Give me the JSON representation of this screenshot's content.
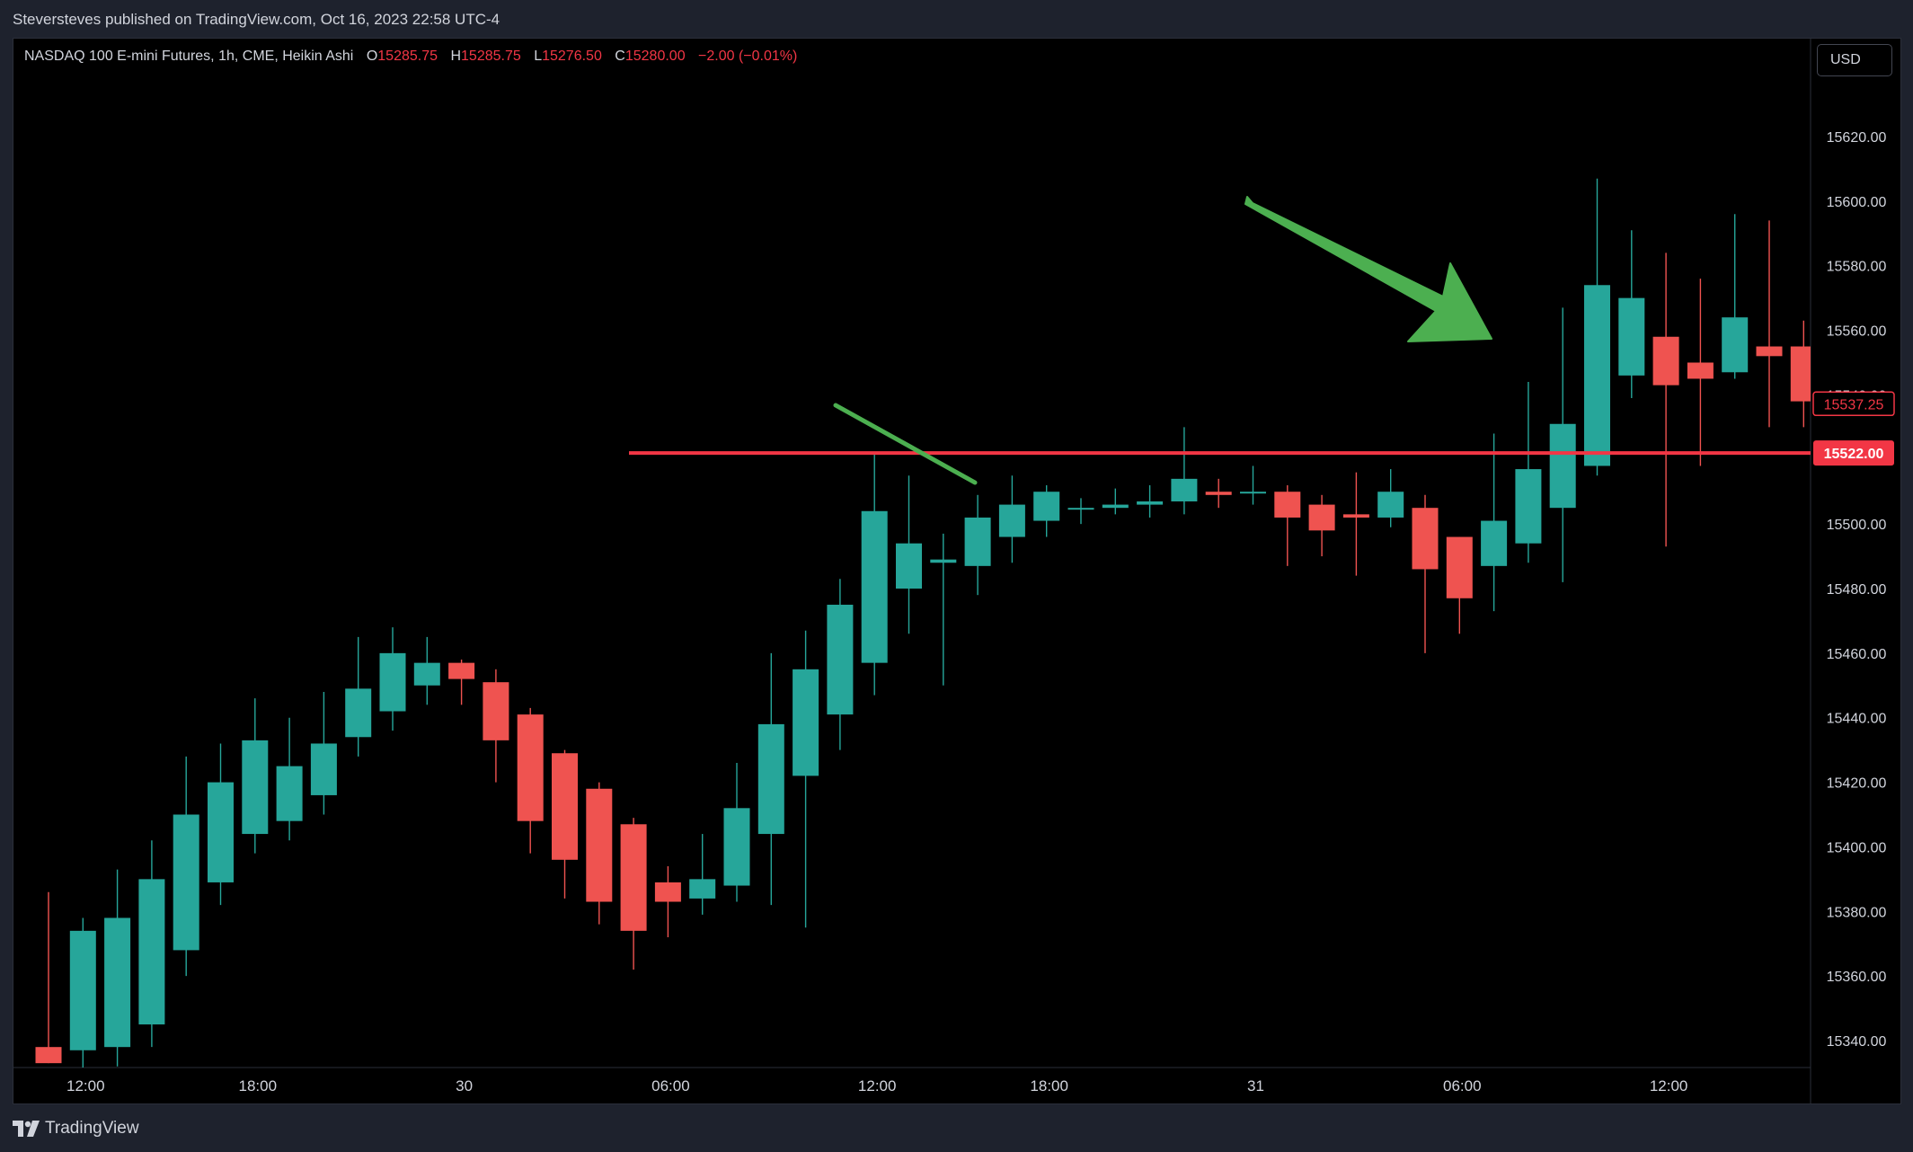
{
  "header": {
    "publisher_line": "Steversteves published on TradingView.com, Oct 16, 2023 22:58 UTC-4"
  },
  "legend": {
    "symbol": "NASDAQ 100 E-mini Futures, 1h, CME, Heikin Ashi",
    "o_label": "O",
    "o_value": "15285.75",
    "h_label": "H",
    "h_value": "15285.75",
    "l_label": "L",
    "l_value": "15276.50",
    "c_label": "C",
    "c_value": "15280.00",
    "change": "−2.00 (−0.01%)"
  },
  "currency_button": "USD",
  "footer": {
    "logo_text": "TradingView"
  },
  "colors": {
    "up": "#26a69a",
    "down": "#ef5350",
    "level": "#f23645",
    "annotation": "#4caf50",
    "background": "#000000",
    "axis_text": "#d1d4dc"
  },
  "chart_data": {
    "type": "candlestick",
    "style": "Heikin Ashi",
    "timeframe": "1h",
    "ylim": [
      15330,
      15660
    ],
    "y_ticks": [
      "15340.00",
      "15360.00",
      "15380.00",
      "15400.00",
      "15420.00",
      "15440.00",
      "15460.00",
      "15480.00",
      "15500.00",
      "15520.00",
      "15540.00",
      "15560.00",
      "15580.00",
      "15600.00",
      "15620.00"
    ],
    "x_tick_labels": [
      {
        "label": "12:00",
        "bar": 1
      },
      {
        "label": "18:00",
        "bar": 6
      },
      {
        "label": "30",
        "bar": 12
      },
      {
        "label": "06:00",
        "bar": 18
      },
      {
        "label": "12:00",
        "bar": 24
      },
      {
        "label": "18:00",
        "bar": 29
      },
      {
        "label": "31",
        "bar": 35
      },
      {
        "label": "06:00",
        "bar": 41
      },
      {
        "label": "12:00",
        "bar": 47
      }
    ],
    "candles": [
      [
        15338,
        15333,
        15386,
        15333
      ],
      [
        15337,
        15374,
        15378,
        15325
      ],
      [
        15338,
        15378,
        15393,
        15332
      ],
      [
        15345,
        15390,
        15402,
        15338
      ],
      [
        15368,
        15410,
        15428,
        15360
      ],
      [
        15389,
        15420,
        15432,
        15382
      ],
      [
        15404,
        15433,
        15446,
        15398
      ],
      [
        15408,
        15425,
        15440,
        15402
      ],
      [
        15416,
        15432,
        15448,
        15410
      ],
      [
        15434,
        15449,
        15465,
        15428
      ],
      [
        15442,
        15460,
        15468,
        15436
      ],
      [
        15450,
        15457,
        15465,
        15444
      ],
      [
        15457,
        15452,
        15458,
        15444
      ],
      [
        15451,
        15433,
        15455,
        15420
      ],
      [
        15441,
        15408,
        15443,
        15398
      ],
      [
        15429,
        15396,
        15430,
        15384
      ],
      [
        15418,
        15383,
        15420,
        15376
      ],
      [
        15407,
        15374,
        15409,
        15362
      ],
      [
        15389,
        15383,
        15394,
        15372
      ],
      [
        15384,
        15390,
        15404,
        15379
      ],
      [
        15388,
        15412,
        15426,
        15383
      ],
      [
        15404,
        15438,
        15460,
        15382
      ],
      [
        15422,
        15455,
        15467,
        15375
      ],
      [
        15441,
        15475,
        15483,
        15430
      ],
      [
        15457,
        15504,
        15522,
        15447
      ],
      [
        15480,
        15494,
        15515,
        15466
      ],
      [
        15488,
        15489,
        15497,
        15450
      ],
      [
        15487,
        15502,
        15509,
        15478
      ],
      [
        15496,
        15506,
        15515,
        15488
      ],
      [
        15501,
        15510,
        15512,
        15496
      ],
      [
        15505,
        15505,
        15508,
        15500
      ],
      [
        15505,
        15506,
        15511,
        15503
      ],
      [
        15506,
        15507,
        15512,
        15502
      ],
      [
        15507,
        15514,
        15530,
        15503
      ],
      [
        15510,
        15509,
        15514,
        15505
      ],
      [
        15510,
        15510,
        15518,
        15506
      ],
      [
        15510,
        15502,
        15512,
        15487
      ],
      [
        15506,
        15498,
        15509,
        15490
      ],
      [
        15503,
        15502,
        15516,
        15484
      ],
      [
        15502,
        15510,
        15517,
        15499
      ],
      [
        15505,
        15486,
        15509,
        15460
      ],
      [
        15496,
        15477,
        15496,
        15466
      ],
      [
        15487,
        15501,
        15528,
        15473
      ],
      [
        15494,
        15517,
        15544,
        15488
      ],
      [
        15505,
        15531,
        15567,
        15482
      ],
      [
        15518,
        15574,
        15607,
        15515
      ],
      [
        15546,
        15570,
        15591,
        15539
      ],
      [
        15558,
        15543,
        15584,
        15493
      ],
      [
        15550,
        15545,
        15576,
        15518
      ],
      [
        15547,
        15564,
        15596,
        15545
      ],
      [
        15555,
        15552,
        15594,
        15530
      ],
      [
        15555,
        15538,
        15563,
        15530
      ]
    ],
    "horizontal_levels": [
      {
        "price": 15522,
        "label": "15522.00"
      }
    ],
    "price_marker": {
      "price": 15537.25,
      "label": "15537.25"
    }
  }
}
